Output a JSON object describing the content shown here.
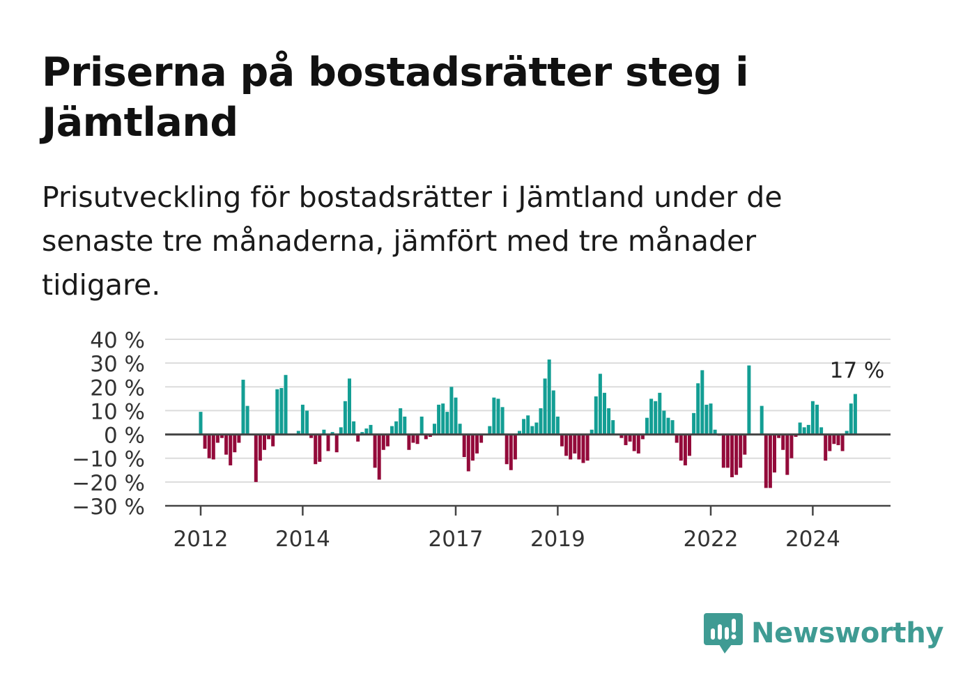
{
  "header": {
    "title": "Priserna på bostadsrätter steg i Jämtland",
    "subtitle": "Prisutveckling för bostadsrätter i Jämtland under de senaste tre månaderna, jämfört med tre månader tidigare."
  },
  "brand": {
    "name": "Newsworthy",
    "icon": "newsworthy-logo-icon",
    "color": "#3f9b93"
  },
  "chart_data": {
    "type": "bar",
    "x_start": "2012-01",
    "x_interval": "month",
    "ylim": [
      -30,
      40
    ],
    "yticks": [
      -30,
      -20,
      -10,
      0,
      10,
      20,
      30,
      40
    ],
    "ytick_labels": [
      "−30 %",
      "−20 %",
      "−10 %",
      "0 %",
      "10 %",
      "20 %",
      "30 %",
      "40 %"
    ],
    "xticks": [
      "2012",
      "2014",
      "2017",
      "2019",
      "2022",
      "2024"
    ],
    "grid": true,
    "colors": {
      "positive": "#139e94",
      "negative": "#930a3a",
      "grid": "#dcdcdc",
      "zero": "#444444"
    },
    "end_label": "17 %",
    "values": [
      9.5,
      -6,
      -10,
      -10.5,
      -3.5,
      -1.5,
      -8.5,
      -13,
      -7.5,
      -3.5,
      23,
      12,
      0,
      -20,
      -11,
      -6.5,
      -2,
      -5,
      19,
      19.5,
      25,
      0,
      0,
      1.5,
      12.5,
      10,
      -1.5,
      -12.5,
      -11.5,
      2,
      -7,
      1,
      -7.5,
      3,
      14,
      23.5,
      5.5,
      -3,
      1,
      2.5,
      4,
      -14,
      -19,
      -6.5,
      -5,
      3.5,
      5.5,
      11,
      7.5,
      -6.5,
      -3.5,
      -4,
      7.5,
      -2,
      -1,
      4.5,
      12.5,
      13,
      9.5,
      20,
      15.5,
      4.5,
      -9.5,
      -15.5,
      -11,
      -8,
      -3.5,
      0,
      3.5,
      15.5,
      15,
      11.5,
      -12.5,
      -15,
      -10.5,
      1.5,
      6.5,
      8,
      3.5,
      5,
      11,
      23.5,
      31.5,
      18.5,
      7.5,
      -5,
      -9,
      -10.5,
      -8,
      -10.5,
      -12,
      -11,
      2,
      16,
      25.5,
      17.5,
      11,
      6,
      0,
      -1.5,
      -4.5,
      -3,
      -7,
      -8,
      -2,
      7,
      15,
      14,
      17.5,
      10,
      7,
      6,
      -3.5,
      -11,
      -13,
      -9,
      9,
      21.5,
      27,
      12.5,
      13,
      2,
      -0.5,
      -14,
      -14,
      -18,
      -17,
      -14,
      -8.5,
      29,
      0,
      0,
      12,
      -22.5,
      -22.5,
      -16,
      -1.5,
      -6.5,
      -17,
      -10,
      -1,
      5,
      3,
      4,
      14,
      12.5,
      3,
      -11,
      -7,
      -4,
      -4.5,
      -7,
      1.5,
      13,
      17
    ]
  }
}
